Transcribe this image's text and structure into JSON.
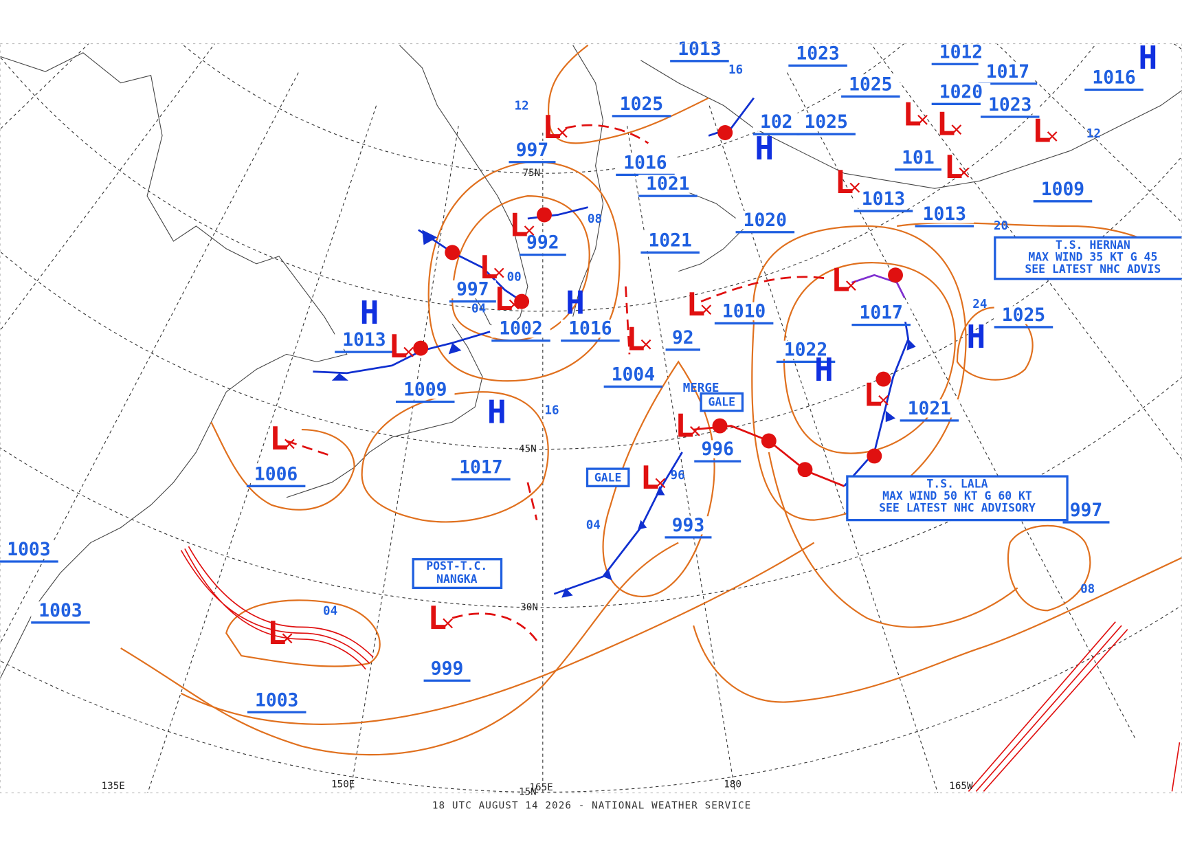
{
  "map": {
    "footer": "18 UTC AUGUST 14 2026 - NATIONAL WEATHER SERVICE",
    "graticule_labels": [
      "75N",
      "45N",
      "30N",
      "15N",
      "135E",
      "150E",
      "165E",
      "180",
      "165W"
    ],
    "pressure_labels": [
      "1013",
      "1023",
      "1012",
      "1017",
      "1016",
      "1025",
      "1020",
      "1023",
      "1025",
      "1025",
      "102",
      "1016",
      "1021",
      "101",
      "1009",
      "1013",
      "1013",
      "1020",
      "1021",
      "997",
      "992",
      "997",
      "1013",
      "1002",
      "1016",
      "1010",
      "1017",
      "1025",
      "1022",
      "1009",
      "1004",
      "1021",
      "996",
      "1017",
      "1006",
      "993",
      "997",
      "1003",
      "1003",
      "999",
      "1003",
      "92"
    ],
    "contour_labels": [
      "12",
      "16",
      "08",
      "00",
      "04",
      "16",
      "96",
      "04",
      "04",
      "08",
      "24",
      "20",
      "12"
    ],
    "centers": [
      "H",
      "H",
      "H",
      "H",
      "H",
      "H",
      "H",
      "L",
      "L",
      "L",
      "L",
      "L",
      "L",
      "L",
      "L",
      "L",
      "L",
      "L",
      "L",
      "L",
      "L",
      "L",
      "L",
      "L",
      "L",
      "L"
    ],
    "gale_boxes": [
      "GALE",
      "GALE"
    ],
    "merge": "MERGE",
    "post_tc": [
      "POST-T.C.",
      "NANGKA"
    ],
    "advisories": [
      {
        "lines": [
          "T.S. HERNAN",
          "MAX WIND 35 KT G 45",
          "SEE LATEST NHC ADVIS"
        ]
      },
      {
        "lines": [
          "T.S. LALA",
          "MAX WIND 50 KT G 60 KT",
          "SEE LATEST NHC ADVISORY"
        ]
      }
    ]
  }
}
